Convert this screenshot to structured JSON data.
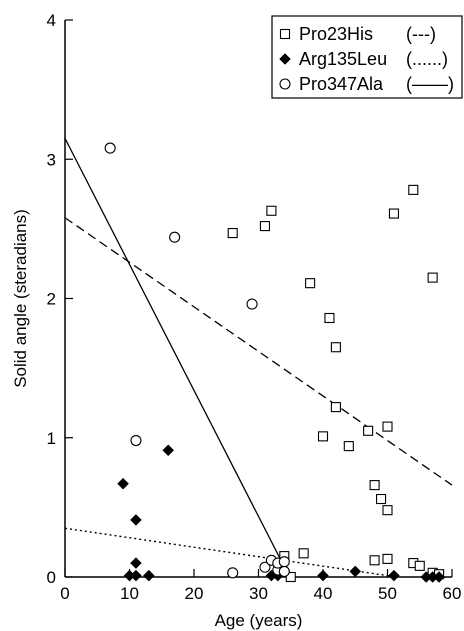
{
  "chart_data": {
    "type": "scatter",
    "xlabel": "Age (years)",
    "ylabel": "Solid angle (steradians)",
    "xlim": [
      0,
      60
    ],
    "ylim": [
      0,
      4
    ],
    "xticks": [
      "0",
      "10",
      "20",
      "30",
      "40",
      "50",
      "60"
    ],
    "yticks": [
      "0",
      "1",
      "2",
      "3",
      "4"
    ],
    "grid": false,
    "legend_position": "top-right",
    "series": [
      {
        "name": "Pro23His",
        "line_label": "(---)",
        "marker": "open-square",
        "line_style": "dashed",
        "fit": {
          "intercept": 2.58,
          "slope": -0.032
        },
        "points": [
          [
            26,
            2.47
          ],
          [
            31,
            2.52
          ],
          [
            32,
            2.63
          ],
          [
            38,
            2.11
          ],
          [
            41,
            1.86
          ],
          [
            42,
            1.65
          ],
          [
            42,
            1.22
          ],
          [
            40,
            1.01
          ],
          [
            44,
            0.94
          ],
          [
            47,
            1.05
          ],
          [
            50,
            1.08
          ],
          [
            51,
            2.61
          ],
          [
            54,
            2.78
          ],
          [
            57,
            2.15
          ],
          [
            48,
            0.66
          ],
          [
            49,
            0.56
          ],
          [
            50,
            0.48
          ],
          [
            34,
            0.15
          ],
          [
            35,
            0.0
          ],
          [
            37,
            0.17
          ],
          [
            48,
            0.12
          ],
          [
            50,
            0.13
          ],
          [
            54,
            0.1
          ],
          [
            55,
            0.08
          ],
          [
            57,
            0.03
          ],
          [
            58,
            0.02
          ]
        ]
      },
      {
        "name": "Arg135Leu",
        "line_label": "(......)",
        "marker": "filled-diamond",
        "line_style": "dotted",
        "fit": {
          "intercept": 0.35,
          "slope": -0.0068
        },
        "points": [
          [
            9,
            0.67
          ],
          [
            11,
            0.41
          ],
          [
            16,
            0.91
          ],
          [
            11,
            0.1
          ],
          [
            10,
            0.01
          ],
          [
            11,
            0.01
          ],
          [
            13,
            0.01
          ],
          [
            32,
            0.01
          ],
          [
            33,
            0.01
          ],
          [
            40,
            0.01
          ],
          [
            45,
            0.04
          ],
          [
            51,
            0.01
          ],
          [
            56,
            0.0
          ],
          [
            57,
            0.0
          ],
          [
            58,
            0.0
          ]
        ]
      },
      {
        "name": "Pro347Ala",
        "line_label": "(——)",
        "marker": "open-circle",
        "line_style": "solid",
        "fit": {
          "intercept": 3.15,
          "slope": -0.0905
        },
        "points": [
          [
            7,
            3.08
          ],
          [
            17,
            2.44
          ],
          [
            29,
            1.96
          ],
          [
            11,
            0.98
          ],
          [
            26,
            0.03
          ],
          [
            31,
            0.07
          ],
          [
            32,
            0.12
          ],
          [
            33,
            0.05
          ],
          [
            33,
            0.1
          ],
          [
            34,
            0.11
          ],
          [
            34,
            0.04
          ]
        ]
      }
    ]
  }
}
